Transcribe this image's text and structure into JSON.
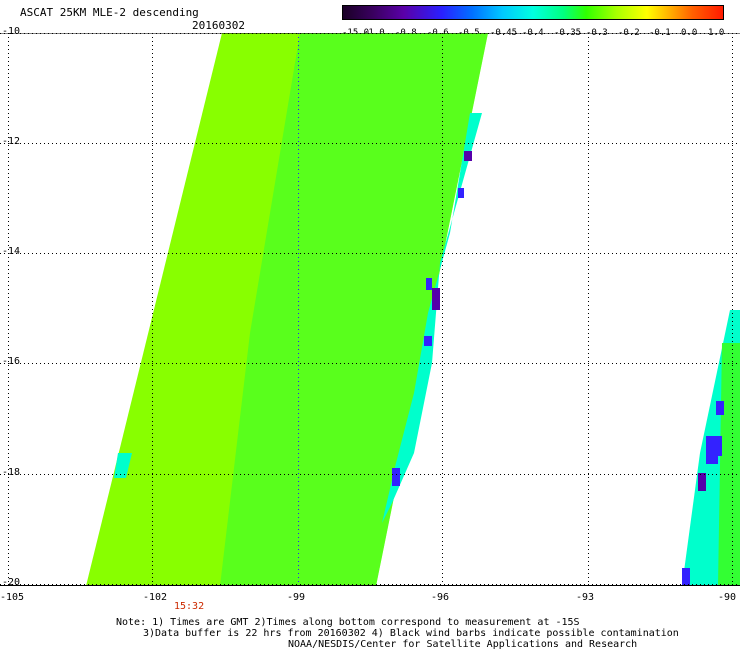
{
  "header": {
    "title": "ASCAT 25KM MLE-2 descending",
    "date": "20160302"
  },
  "colorbar": {
    "labels": [
      "-15.0",
      "-1.0",
      "-0.8",
      "-0.6",
      "-0.5",
      "-0.45",
      "-0.4",
      "-0.35",
      "-0.3",
      "-0.2",
      "-0.1",
      "0.0",
      "1.0"
    ]
  },
  "map": {
    "lat_labels": [
      "-10",
      "-12",
      "-14",
      "-16",
      "-18",
      "-20"
    ],
    "lon_labels": [
      "-105",
      "-102",
      "-99",
      "-96",
      "-93",
      "-90"
    ],
    "time_label": "15:32",
    "colors": {
      "main_swath": "#88ff00",
      "swath_edge": "#33ff33",
      "cyan_zone": "#00ffcc",
      "blue_pixel": "#3322ff",
      "purple_pixel": "#5500aa",
      "grid_dots": "#000000",
      "meridian_blue": "#2222ff"
    }
  },
  "footer": {
    "line1": "Note: 1) Times are GMT 2)Times along bottom correspond to measurement at -15S",
    "line2": "3)Data buffer is 22 hrs from 20160302 4) Black wind barbs indicate possible contamination",
    "line3": "NOAA/NESDIS/Center for Satellite Applications and Research"
  }
}
